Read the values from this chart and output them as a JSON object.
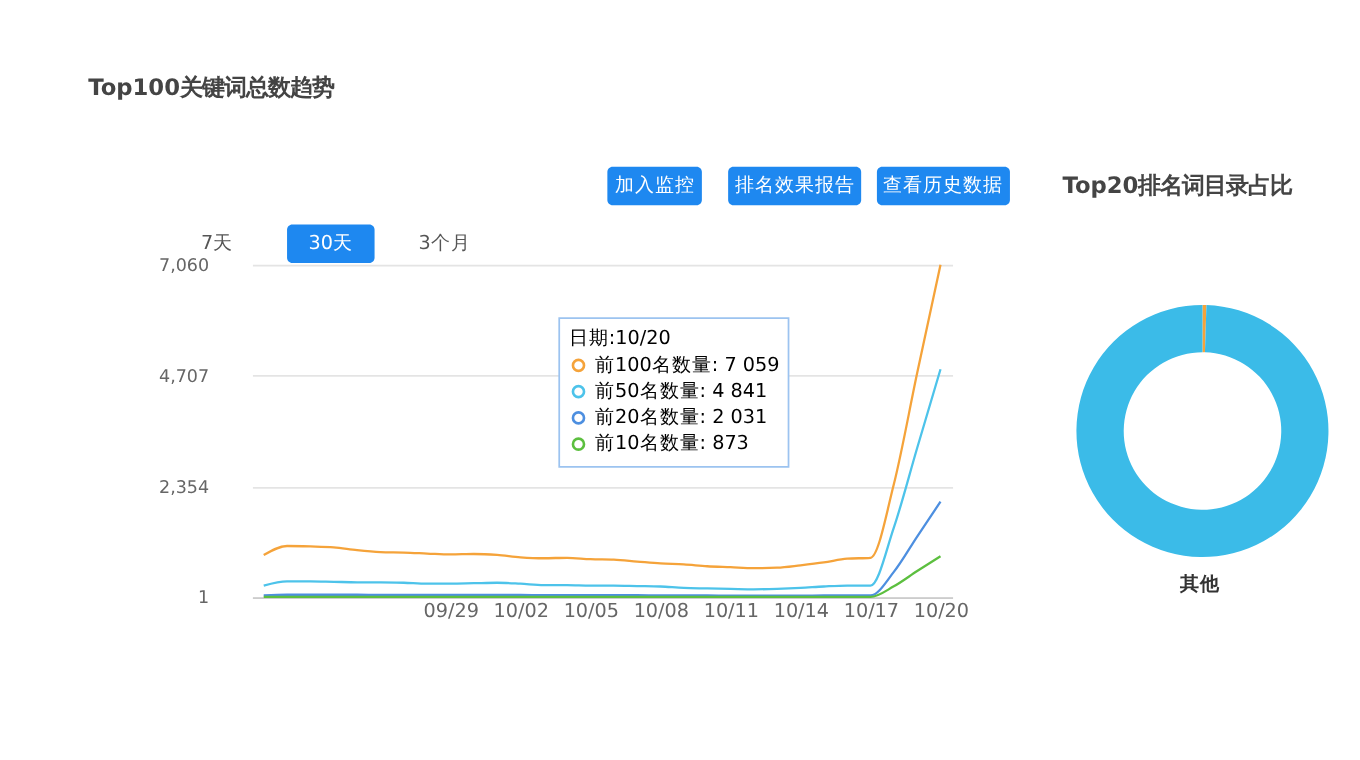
{
  "chart_data": [
    {
      "type": "line",
      "title": "Top100关键词总数趋势",
      "annotations": [
        "加入监控",
        "排名效果报告",
        "查看历史数据",
        "7天",
        "30天",
        "3个月"
      ],
      "categories": [
        null,
        null,
        null,
        null,
        null,
        null,
        null,
        null,
        "09/29",
        null,
        null,
        "10/02",
        null,
        null,
        "10/05",
        null,
        null,
        "10/08",
        null,
        null,
        "10/11",
        null,
        null,
        "10/14",
        null,
        null,
        "10/17",
        null,
        null,
        "10/20"
      ],
      "legend_title": "日期:10/20",
      "legend": "top",
      "series": [
        {
          "name": "前100名数量: 7 059",
          "color": "#f5a33a",
          "values": [
            900,
            1090,
            1080,
            1060,
            1000,
            960,
            950,
            930,
            910,
            920,
            900,
            850,
            830,
            840,
            810,
            800,
            760,
            720,
            700,
            660,
            640,
            620,
            630,
            680,
            740,
            820,
            840,
            2400,
            4760,
            7059
          ]
        },
        {
          "name": "前50名数量: 4 841",
          "color": "#4dc3ea",
          "values": [
            250,
            340,
            340,
            330,
            320,
            320,
            310,
            290,
            290,
            300,
            310,
            290,
            260,
            260,
            250,
            250,
            240,
            230,
            200,
            190,
            180,
            170,
            180,
            200,
            230,
            250,
            250,
            1480,
            3170,
            4841
          ]
        },
        {
          "name": "前20名数量: 2 031",
          "color": "#4d8fe0",
          "values": [
            40,
            55,
            55,
            55,
            55,
            50,
            50,
            50,
            50,
            50,
            50,
            50,
            45,
            45,
            45,
            45,
            45,
            40,
            40,
            40,
            35,
            35,
            35,
            35,
            40,
            40,
            40,
            540,
            1290,
            2031
          ]
        },
        {
          "name": "前10名数量: 873",
          "color": "#5cbf3f",
          "values": [
            10,
            10,
            10,
            10,
            10,
            10,
            10,
            10,
            10,
            10,
            10,
            10,
            10,
            10,
            10,
            10,
            10,
            10,
            10,
            10,
            10,
            10,
            10,
            10,
            10,
            10,
            10,
            234,
            558,
            873
          ]
        }
      ],
      "ylim": [
        1,
        7060
      ],
      "yticks": [
        {
          "value": 1,
          "label": "1"
        },
        {
          "value": 2354,
          "label": "2,354"
        },
        {
          "value": 4707,
          "label": "4,707"
        },
        {
          "value": 7060,
          "label": "7,060"
        }
      ],
      "grid": "y",
      "marker": "none",
      "line_style": "solid"
    },
    {
      "type": "donut",
      "title": "Top20排名词目录占比",
      "categories": [
        null,
        "其他"
      ],
      "values": [
        0.5,
        99.5
      ],
      "colors": [
        "#f5a33a",
        "#3bbbe8"
      ]
    }
  ]
}
